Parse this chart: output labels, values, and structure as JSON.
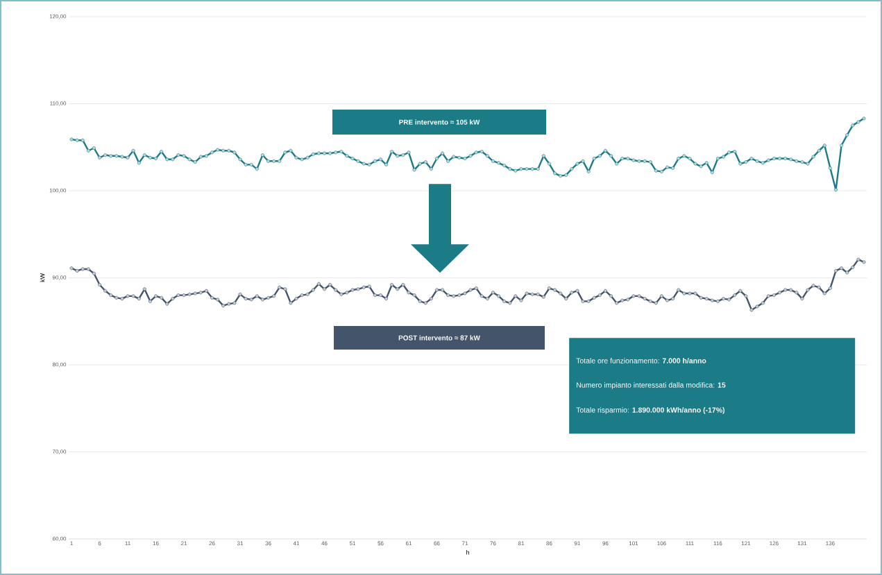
{
  "chart_data": {
    "type": "line",
    "xlabel": "h",
    "ylabel": "kW",
    "categories": [
      "1",
      null,
      null,
      null,
      null,
      "6",
      null,
      null,
      null,
      null,
      "11",
      null,
      null,
      null,
      null,
      "16",
      null,
      null,
      null,
      null,
      "21",
      null,
      null,
      null,
      null,
      "26",
      null,
      null,
      null,
      null,
      "31",
      null,
      null,
      null,
      null,
      "36",
      null,
      null,
      null,
      null,
      "41",
      null,
      null,
      null,
      null,
      "46",
      null,
      null,
      null,
      null,
      "51",
      null,
      null,
      null,
      null,
      "56",
      null,
      null,
      null,
      null,
      "61",
      null,
      null,
      null,
      null,
      "66",
      null,
      null,
      null,
      null,
      "71",
      null,
      null,
      null,
      null,
      "76",
      null,
      null,
      null,
      null,
      "81",
      null,
      null,
      null,
      null,
      "86",
      null,
      null,
      null,
      null,
      "91",
      null,
      null,
      null,
      null,
      "96",
      null,
      null,
      null,
      null,
      "101",
      null,
      null,
      null,
      null,
      "106",
      null,
      null,
      null,
      null,
      "111",
      null,
      null,
      null,
      null,
      "116",
      null,
      null,
      null,
      null,
      "121",
      null,
      null,
      null,
      null,
      "126",
      null,
      null,
      null,
      null,
      "131",
      null,
      null,
      null,
      null,
      "136",
      null,
      null,
      null,
      null,
      null,
      null
    ],
    "series": [
      {
        "color": "#1b7b86",
        "values": [
          105.9,
          105.8,
          105.8,
          104.6,
          104.9,
          103.8,
          104.1,
          104.0,
          104.0,
          103.9,
          103.8,
          104.6,
          103.2,
          104.1,
          103.8,
          103.7,
          104.5,
          103.6,
          103.6,
          104.1,
          104.0,
          103.6,
          103.3,
          103.9,
          104.0,
          104.4,
          104.7,
          104.6,
          104.6,
          104.4,
          103.6,
          103.0,
          103.0,
          102.5,
          104.1,
          103.4,
          103.4,
          103.4,
          104.4,
          104.6,
          103.8,
          103.6,
          103.8,
          104.2,
          104.3,
          104.3,
          104.3,
          104.4,
          104.5,
          104.0,
          103.7,
          103.4,
          103.1,
          103.0,
          103.4,
          103.6,
          103.0,
          104.5,
          104.0,
          104.1,
          104.4,
          102.4,
          103.1,
          103.3,
          102.5,
          103.7,
          104.3,
          103.4,
          103.9,
          103.8,
          103.7,
          104.0,
          104.4,
          104.5,
          104.0,
          103.4,
          103.2,
          102.9,
          102.5,
          102.3,
          102.5,
          102.5,
          102.5,
          102.5,
          104.0,
          103.1,
          102.0,
          101.7,
          101.8,
          102.5,
          103.1,
          103.4,
          102.2,
          103.7,
          104.0,
          104.6,
          104.0,
          103.1,
          103.7,
          103.7,
          103.5,
          103.4,
          103.4,
          103.3,
          102.3,
          102.2,
          102.7,
          102.6,
          103.7,
          104.0,
          103.7,
          103.1,
          102.8,
          103.2,
          102.1,
          103.7,
          103.9,
          104.4,
          104.5,
          103.1,
          103.3,
          103.7,
          103.4,
          103.2,
          103.5,
          103.7,
          103.7,
          103.7,
          103.6,
          103.4,
          103.3,
          103.1,
          103.9,
          104.6,
          105.2,
          102.6,
          100.1,
          105.2,
          106.4,
          107.5,
          107.9,
          108.3
        ]
      },
      {
        "color": "#44546a",
        "values": [
          91.1,
          90.8,
          91.0,
          91.0,
          90.5,
          89.2,
          88.5,
          88.0,
          87.7,
          87.6,
          87.9,
          87.9,
          87.6,
          88.7,
          87.3,
          87.9,
          87.7,
          87.0,
          87.6,
          88.0,
          88.0,
          88.1,
          88.2,
          88.3,
          88.5,
          87.7,
          87.5,
          86.8,
          87.0,
          87.1,
          88.1,
          87.6,
          87.5,
          87.9,
          87.5,
          87.7,
          87.9,
          88.9,
          88.7,
          87.1,
          87.6,
          88.0,
          88.1,
          88.6,
          89.3,
          88.7,
          89.2,
          88.6,
          88.1,
          88.3,
          88.6,
          88.7,
          88.9,
          89.0,
          88.0,
          88.0,
          87.6,
          89.2,
          88.7,
          89.2,
          88.3,
          88.0,
          87.3,
          87.1,
          87.6,
          88.6,
          88.6,
          88.0,
          87.9,
          88.0,
          88.2,
          88.6,
          88.8,
          87.9,
          87.6,
          88.3,
          87.9,
          87.3,
          87.1,
          87.9,
          87.4,
          88.2,
          88.1,
          88.1,
          87.8,
          88.8,
          88.6,
          88.2,
          87.6,
          88.3,
          88.5,
          87.3,
          87.3,
          87.7,
          88.0,
          88.5,
          87.9,
          87.1,
          87.4,
          87.5,
          87.9,
          87.9,
          87.6,
          87.3,
          87.1,
          87.9,
          87.4,
          87.6,
          88.6,
          88.2,
          88.2,
          88.2,
          87.7,
          87.6,
          87.4,
          87.3,
          87.6,
          87.5,
          88.0,
          88.5,
          87.9,
          86.3,
          86.7,
          87.1,
          87.9,
          88.0,
          88.3,
          88.6,
          88.6,
          88.3,
          87.6,
          88.6,
          89.1,
          88.9,
          88.2,
          88.8,
          90.8,
          91.1,
          90.6,
          91.2,
          92.1,
          91.8
        ]
      }
    ],
    "ylim": [
      60,
      120
    ],
    "yticks": [
      {
        "value": 60,
        "label": "60,00"
      },
      {
        "value": 70,
        "label": "70,00"
      },
      {
        "value": 80,
        "label": "80,00"
      },
      {
        "value": 90,
        "label": "90,00"
      },
      {
        "value": 100,
        "label": "100,00"
      },
      {
        "value": 110,
        "label": "110,00"
      },
      {
        "value": 120,
        "label": "120,00"
      }
    ],
    "grid": "y",
    "marker": "circle",
    "line_style": "solid",
    "annotations": [
      "PRE intervento ≈ 105 kW",
      "POST intervento ≈ 87 kW",
      "Totale ore funzionamento: **7.000 h/anno**",
      "Numero impianto interessati dalla modifica: **15**",
      "Totale risparmio: **1.890.000 kWh/anno (-17%)**"
    ]
  }
}
